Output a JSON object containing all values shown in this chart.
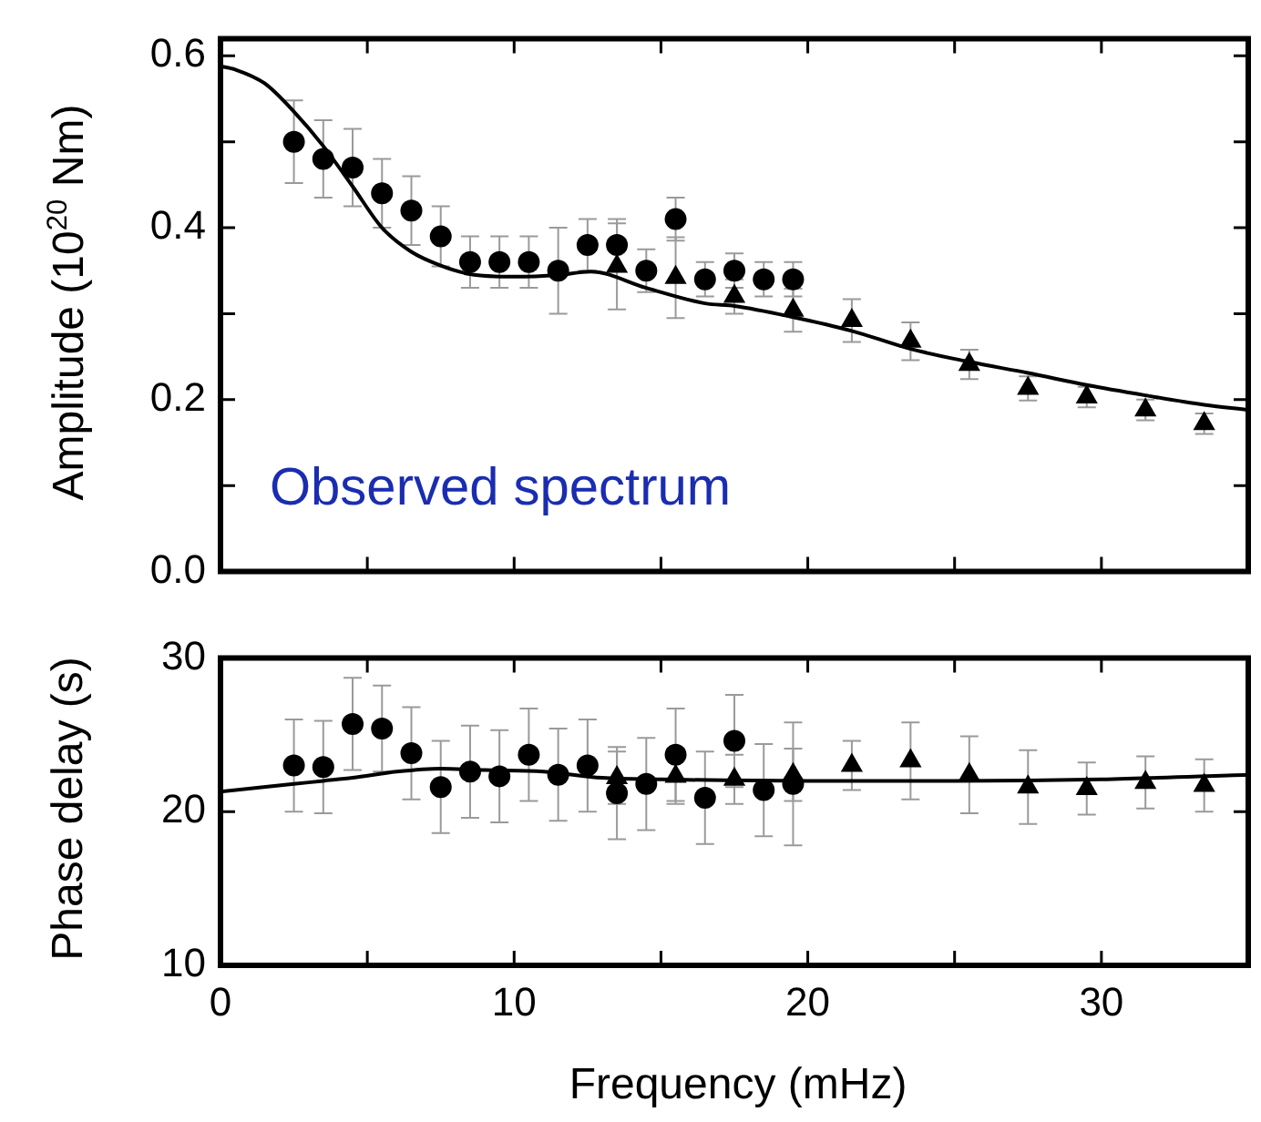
{
  "chart_data": [
    {
      "type": "scatter",
      "ylabel": "Amplitude (10$^{20}$ Nm)",
      "annotations": [
        "Observed spectrum"
      ],
      "xlim": [
        0,
        35
      ],
      "xticks": [
        0,
        {
          "value": 5,
          "label": null
        },
        10,
        {
          "value": 15,
          "label": null
        },
        20,
        {
          "value": 25,
          "label": null
        },
        30
      ],
      "ylim": [
        0,
        0.62
      ],
      "yticks": [
        {
          "value": 0,
          "label": "0.0"
        },
        {
          "value": 0.1,
          "label": null
        },
        0.2,
        {
          "value": 0.3,
          "label": null
        },
        0.4,
        {
          "value": 0.5,
          "label": null
        },
        0.6
      ],
      "tick_labels": "y",
      "series": [
        {
          "type": "scatter",
          "marker": "circle",
          "color": "#000000",
          "x": [
            2.5,
            3.5,
            4.5,
            5.5,
            6.5,
            7.5,
            8.5,
            9.5,
            10.5,
            11.5,
            12.5,
            13.5,
            14.5,
            15.5,
            16.5,
            17.5,
            18.5,
            19.5
          ],
          "values": [
            0.5,
            0.48,
            0.47,
            0.44,
            0.42,
            0.39,
            0.36,
            0.36,
            0.36,
            0.35,
            0.38,
            0.38,
            0.35,
            0.41,
            0.34,
            0.35,
            0.34,
            0.34
          ],
          "errors": [
            0.048,
            0.045,
            0.045,
            0.04,
            0.04,
            0.035,
            0.03,
            0.03,
            0.03,
            0.05,
            0.03,
            0.03,
            0.025,
            0.025,
            0.02,
            0.02,
            0.02,
            0.02
          ]
        },
        {
          "type": "scatter",
          "marker": "triangle",
          "color": "#000000",
          "x": [
            13.5,
            15.5,
            17.5,
            19.5,
            21.5,
            23.5,
            25.5,
            27.5,
            29.5,
            31.5,
            33.5
          ],
          "values": [
            0.355,
            0.342,
            0.32,
            0.304,
            0.292,
            0.268,
            0.241,
            0.213,
            0.203,
            0.188,
            0.172
          ],
          "errors": [
            0.05,
            0.047,
            0.02,
            0.025,
            0.025,
            0.022,
            0.017,
            0.014,
            0.012,
            0.012,
            0.012
          ]
        },
        {
          "type": "line",
          "marker": "none",
          "color": "#000000",
          "x": [
            0,
            0.5,
            1.5,
            2.5,
            3.5,
            4.5,
            5.5,
            6.5,
            7.5,
            8.5,
            10,
            11.5,
            12.6,
            14.5,
            16.5,
            17.5,
            19.5,
            21.5,
            23.5,
            25.5,
            27.5,
            29.5,
            31.5,
            33.5,
            35
          ],
          "values": [
            0.588,
            0.584,
            0.568,
            0.535,
            0.495,
            0.448,
            0.4,
            0.372,
            0.356,
            0.346,
            0.343,
            0.345,
            0.349,
            0.33,
            0.312,
            0.309,
            0.296,
            0.28,
            0.259,
            0.244,
            0.231,
            0.217,
            0.205,
            0.194,
            0.188
          ]
        }
      ]
    },
    {
      "type": "scatter",
      "xlabel": "Frequency (mHz)",
      "ylabel": "Phase delay (s)",
      "xlim": [
        0,
        35
      ],
      "xticks": [
        0,
        {
          "value": 5,
          "label": null
        },
        10,
        {
          "value": 15,
          "label": null
        },
        20,
        {
          "value": 25,
          "label": null
        },
        30
      ],
      "ylim": [
        10,
        30
      ],
      "yticks": [
        10,
        20,
        30
      ],
      "series": [
        {
          "type": "scatter",
          "marker": "circle",
          "color": "#000000",
          "x": [
            2.5,
            3.5,
            4.5,
            5.5,
            6.5,
            7.5,
            8.5,
            9.5,
            10.5,
            11.5,
            12.5,
            13.5,
            14.5,
            15.5,
            16.5,
            17.5,
            18.5,
            19.5
          ],
          "values": [
            23.0,
            22.9,
            25.7,
            25.4,
            23.8,
            21.6,
            22.6,
            22.3,
            23.7,
            22.4,
            23.0,
            21.2,
            21.8,
            23.7,
            20.9,
            24.6,
            21.4,
            21.8
          ],
          "errors": [
            3,
            3,
            3,
            2.8,
            3,
            3,
            3,
            3,
            3,
            3,
            3,
            3,
            3,
            3,
            3,
            3,
            3,
            4
          ]
        },
        {
          "type": "scatter",
          "marker": "triangle",
          "color": "#000000",
          "x": [
            13.5,
            15.5,
            17.5,
            19.5,
            21.5,
            23.5,
            25.5,
            27.5,
            29.5,
            31.5,
            33.5
          ],
          "values": [
            22.2,
            22.3,
            22.1,
            22.4,
            23.0,
            23.3,
            22.4,
            21.6,
            21.5,
            21.9,
            21.7
          ],
          "errors": [
            1.7,
            1.8,
            1.6,
            1.7,
            1.6,
            2.5,
            2.5,
            2.4,
            1.7,
            1.7,
            1.7
          ]
        },
        {
          "type": "line",
          "marker": "none",
          "color": "#000000",
          "x": [
            0,
            2.5,
            3.5,
            4.5,
            6,
            7.5,
            9,
            11,
            13,
            15,
            20,
            25,
            30,
            35
          ],
          "values": [
            21.3,
            21.8,
            22.0,
            22.2,
            22.6,
            22.8,
            22.7,
            22.6,
            22.2,
            22.1,
            22.0,
            22.0,
            22.1,
            22.4
          ]
        }
      ]
    }
  ]
}
